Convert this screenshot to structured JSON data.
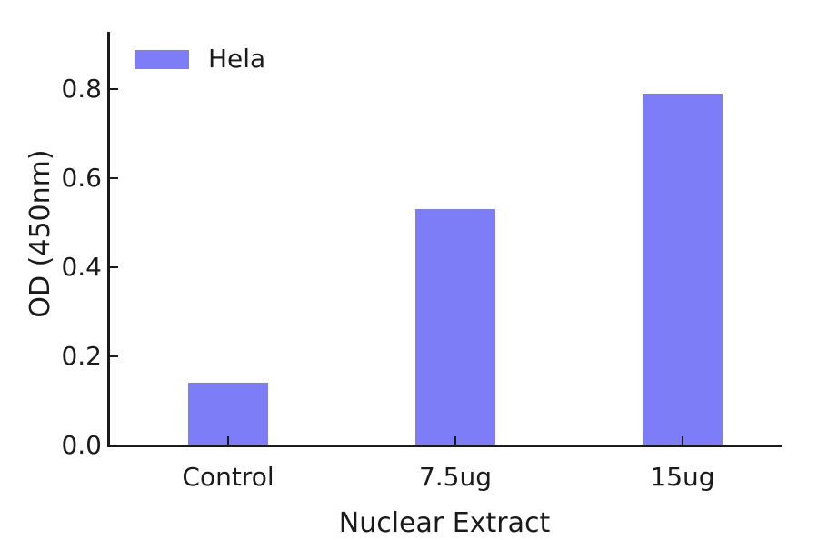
{
  "chart_data": {
    "type": "bar",
    "title": "",
    "categories": [
      "Control",
      "7.5ug",
      "15ug"
    ],
    "series": [
      {
        "name": "Hela",
        "color": "#7d7df8",
        "values": [
          0.14,
          0.53,
          0.79
        ]
      }
    ],
    "xlabel": "Nuclear Extract",
    "ylabel": "OD (450nm)",
    "ylim": [
      0,
      0.93
    ],
    "yticks": [
      0,
      0.2,
      0.4,
      0.6,
      0.8
    ],
    "ytick_labels": [
      "0.0",
      "0.2",
      "0.4",
      "0.6",
      "0.8"
    ],
    "grid": false,
    "legend_position": "upper-left",
    "axis_color": "#1a1a1a",
    "background_color": "#ffffff"
  }
}
